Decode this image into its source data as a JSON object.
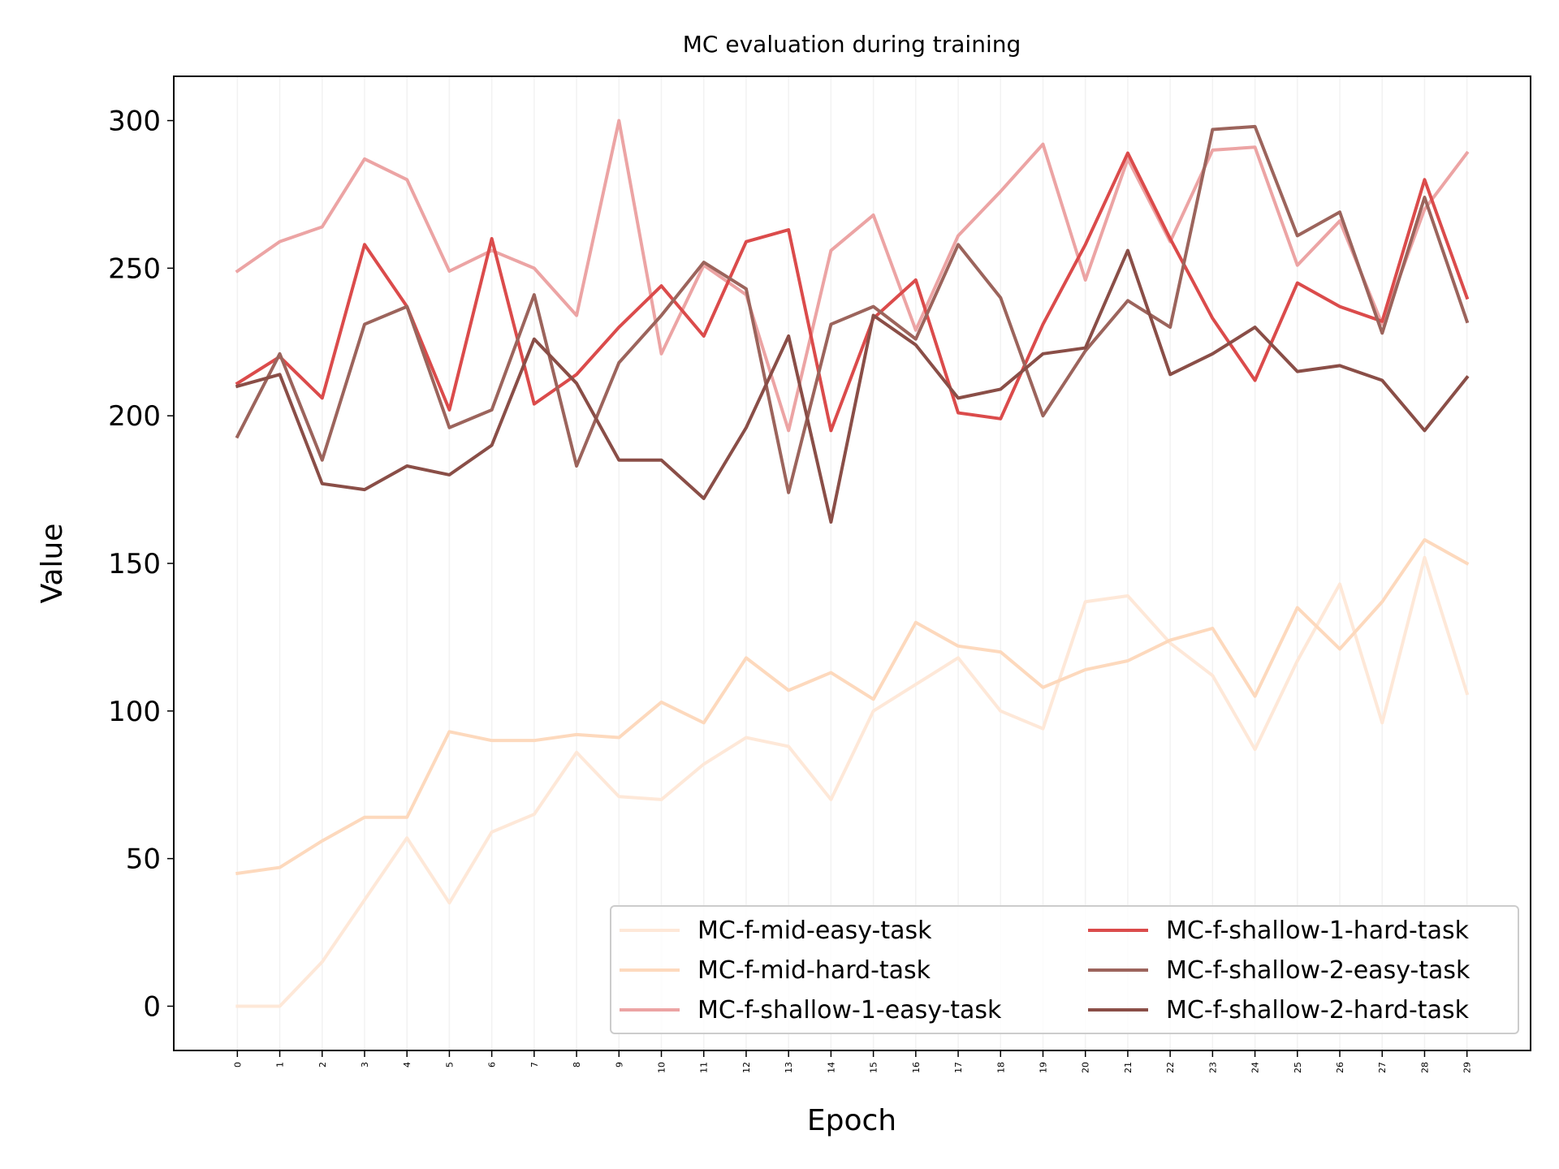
{
  "chart_data": {
    "type": "line",
    "title": "MC evaluation during training",
    "xlabel": "Epoch",
    "ylabel": "Value",
    "x": [
      0,
      1,
      2,
      3,
      4,
      5,
      6,
      7,
      8,
      9,
      10,
      11,
      12,
      13,
      14,
      15,
      16,
      17,
      18,
      19,
      20,
      21,
      22,
      23,
      24,
      25,
      26,
      27,
      28,
      29
    ],
    "xlim": [
      -1.5,
      30.5
    ],
    "ylim": [
      -15,
      315
    ],
    "yticks": [
      0,
      50,
      100,
      150,
      200,
      250,
      300
    ],
    "grid": "vertical only, faint",
    "legend_placement": "lower-right",
    "legend_columns": 2,
    "series": [
      {
        "name": "MC-f-mid-easy-task",
        "color": "#fee8d8",
        "values": [
          0,
          0,
          15,
          36,
          57,
          35,
          59,
          65,
          86,
          71,
          70,
          82,
          91,
          88,
          70,
          100,
          109,
          118,
          100,
          94,
          137,
          139,
          123,
          112,
          87,
          117,
          143,
          96,
          152,
          106
        ]
      },
      {
        "name": "MC-f-mid-hard-task",
        "color": "#fdd9bd",
        "values": [
          45,
          47,
          56,
          64,
          64,
          93,
          90,
          90,
          92,
          91,
          103,
          96,
          118,
          107,
          113,
          104,
          130,
          122,
          120,
          108,
          114,
          117,
          124,
          128,
          105,
          135,
          121,
          137,
          158,
          150
        ]
      },
      {
        "name": "MC-f-shallow-1-easy-task",
        "color": "#eca4a4",
        "values": [
          249,
          259,
          264,
          287,
          280,
          249,
          256,
          250,
          234,
          300,
          221,
          251,
          241,
          195,
          256,
          268,
          229,
          261,
          276,
          292,
          246,
          287,
          259,
          290,
          291,
          251,
          266,
          231,
          270,
          289
        ]
      },
      {
        "name": "MC-f-shallow-1-hard-task",
        "color": "#db4b4b",
        "values": [
          211,
          220,
          206,
          258,
          237,
          202,
          260,
          204,
          214,
          230,
          244,
          227,
          259,
          263,
          195,
          233,
          246,
          201,
          199,
          231,
          258,
          289,
          260,
          233,
          212,
          245,
          237,
          232,
          280,
          240
        ]
      },
      {
        "name": "MC-f-shallow-2-easy-task",
        "color": "#9c645c",
        "values": [
          193,
          221,
          185,
          231,
          237,
          196,
          202,
          241,
          183,
          218,
          234,
          252,
          243,
          174,
          231,
          237,
          226,
          258,
          240,
          200,
          222,
          239,
          230,
          297,
          298,
          261,
          269,
          228,
          274,
          232
        ]
      },
      {
        "name": "MC-f-shallow-2-hard-task",
        "color": "#8a4e47",
        "values": [
          210,
          214,
          177,
          175,
          183,
          180,
          190,
          226,
          211,
          185,
          185,
          172,
          196,
          227,
          164,
          234,
          224,
          206,
          209,
          221,
          223,
          256,
          214,
          221,
          230,
          215,
          217,
          212,
          195,
          213
        ]
      }
    ]
  }
}
